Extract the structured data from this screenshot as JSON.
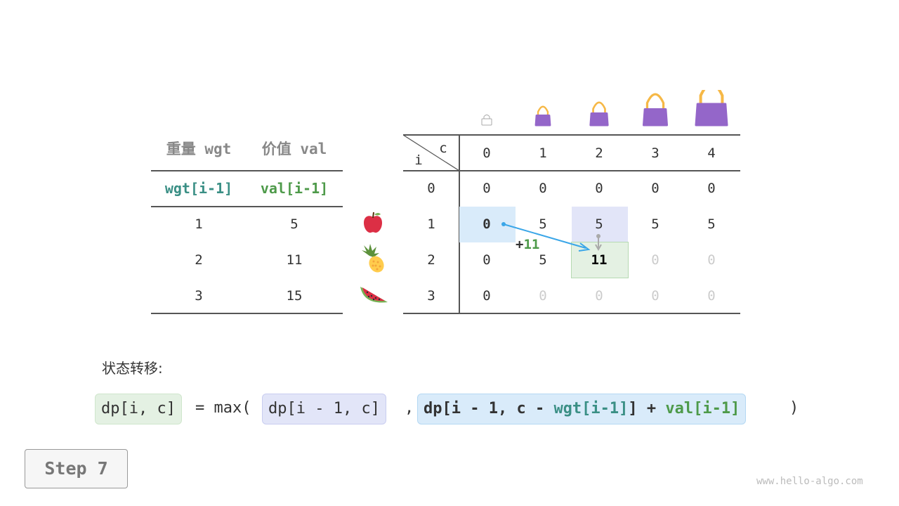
{
  "left_table": {
    "headers": [
      "重量 wgt",
      "价值 val"
    ],
    "subheaders": [
      "wgt[i-1]",
      "val[i-1]"
    ],
    "rows": [
      [
        "1",
        "5"
      ],
      [
        "2",
        "11"
      ],
      [
        "3",
        "15"
      ]
    ],
    "items": [
      "apple-icon",
      "pineapple-icon",
      "watermelon-icon"
    ]
  },
  "dp_table": {
    "corner_c": "c",
    "corner_i": "i",
    "col_headers": [
      "0",
      "1",
      "2",
      "3",
      "4"
    ],
    "row_headers": [
      "0",
      "1",
      "2",
      "3"
    ],
    "cells": [
      [
        "0",
        "0",
        "0",
        "0",
        "0"
      ],
      [
        "0",
        "5",
        "5",
        "5",
        "5"
      ],
      [
        "0",
        "5",
        "11",
        "0",
        "0"
      ],
      [
        "0",
        "0",
        "0",
        "0",
        "0"
      ]
    ],
    "computed": [
      [
        1,
        1,
        1,
        1,
        1
      ],
      [
        1,
        1,
        1,
        1,
        1
      ],
      [
        1,
        1,
        1,
        0,
        0
      ],
      [
        1,
        0,
        0,
        0,
        0
      ]
    ],
    "bag_icons": [
      "empty-bag-icon",
      "bag-icon-1",
      "bag-icon-2",
      "bag-icon-3",
      "bag-icon-4"
    ],
    "arrow_label": "+11"
  },
  "formula": {
    "label": "状态转移:",
    "lhs": "dp[i, c]",
    "eq": "= max(",
    "opt1": "dp[i - 1, c]",
    "comma": ",",
    "opt2_a": "dp[i - 1, c - ",
    "opt2_wgt": "wgt[i-1]",
    "opt2_b": "] + ",
    "opt2_val": "val[i-1]",
    "close": ")"
  },
  "step_label": "Step 7",
  "watermark": "www.hello-algo.com",
  "colors": {
    "green_box": "#e4f1e3",
    "purple_box": "#e2e5f8",
    "blue_box": "#d9ebfa",
    "bag": "#9466c9",
    "handle": "#f6b846",
    "arrow": "#3aa6e8"
  }
}
